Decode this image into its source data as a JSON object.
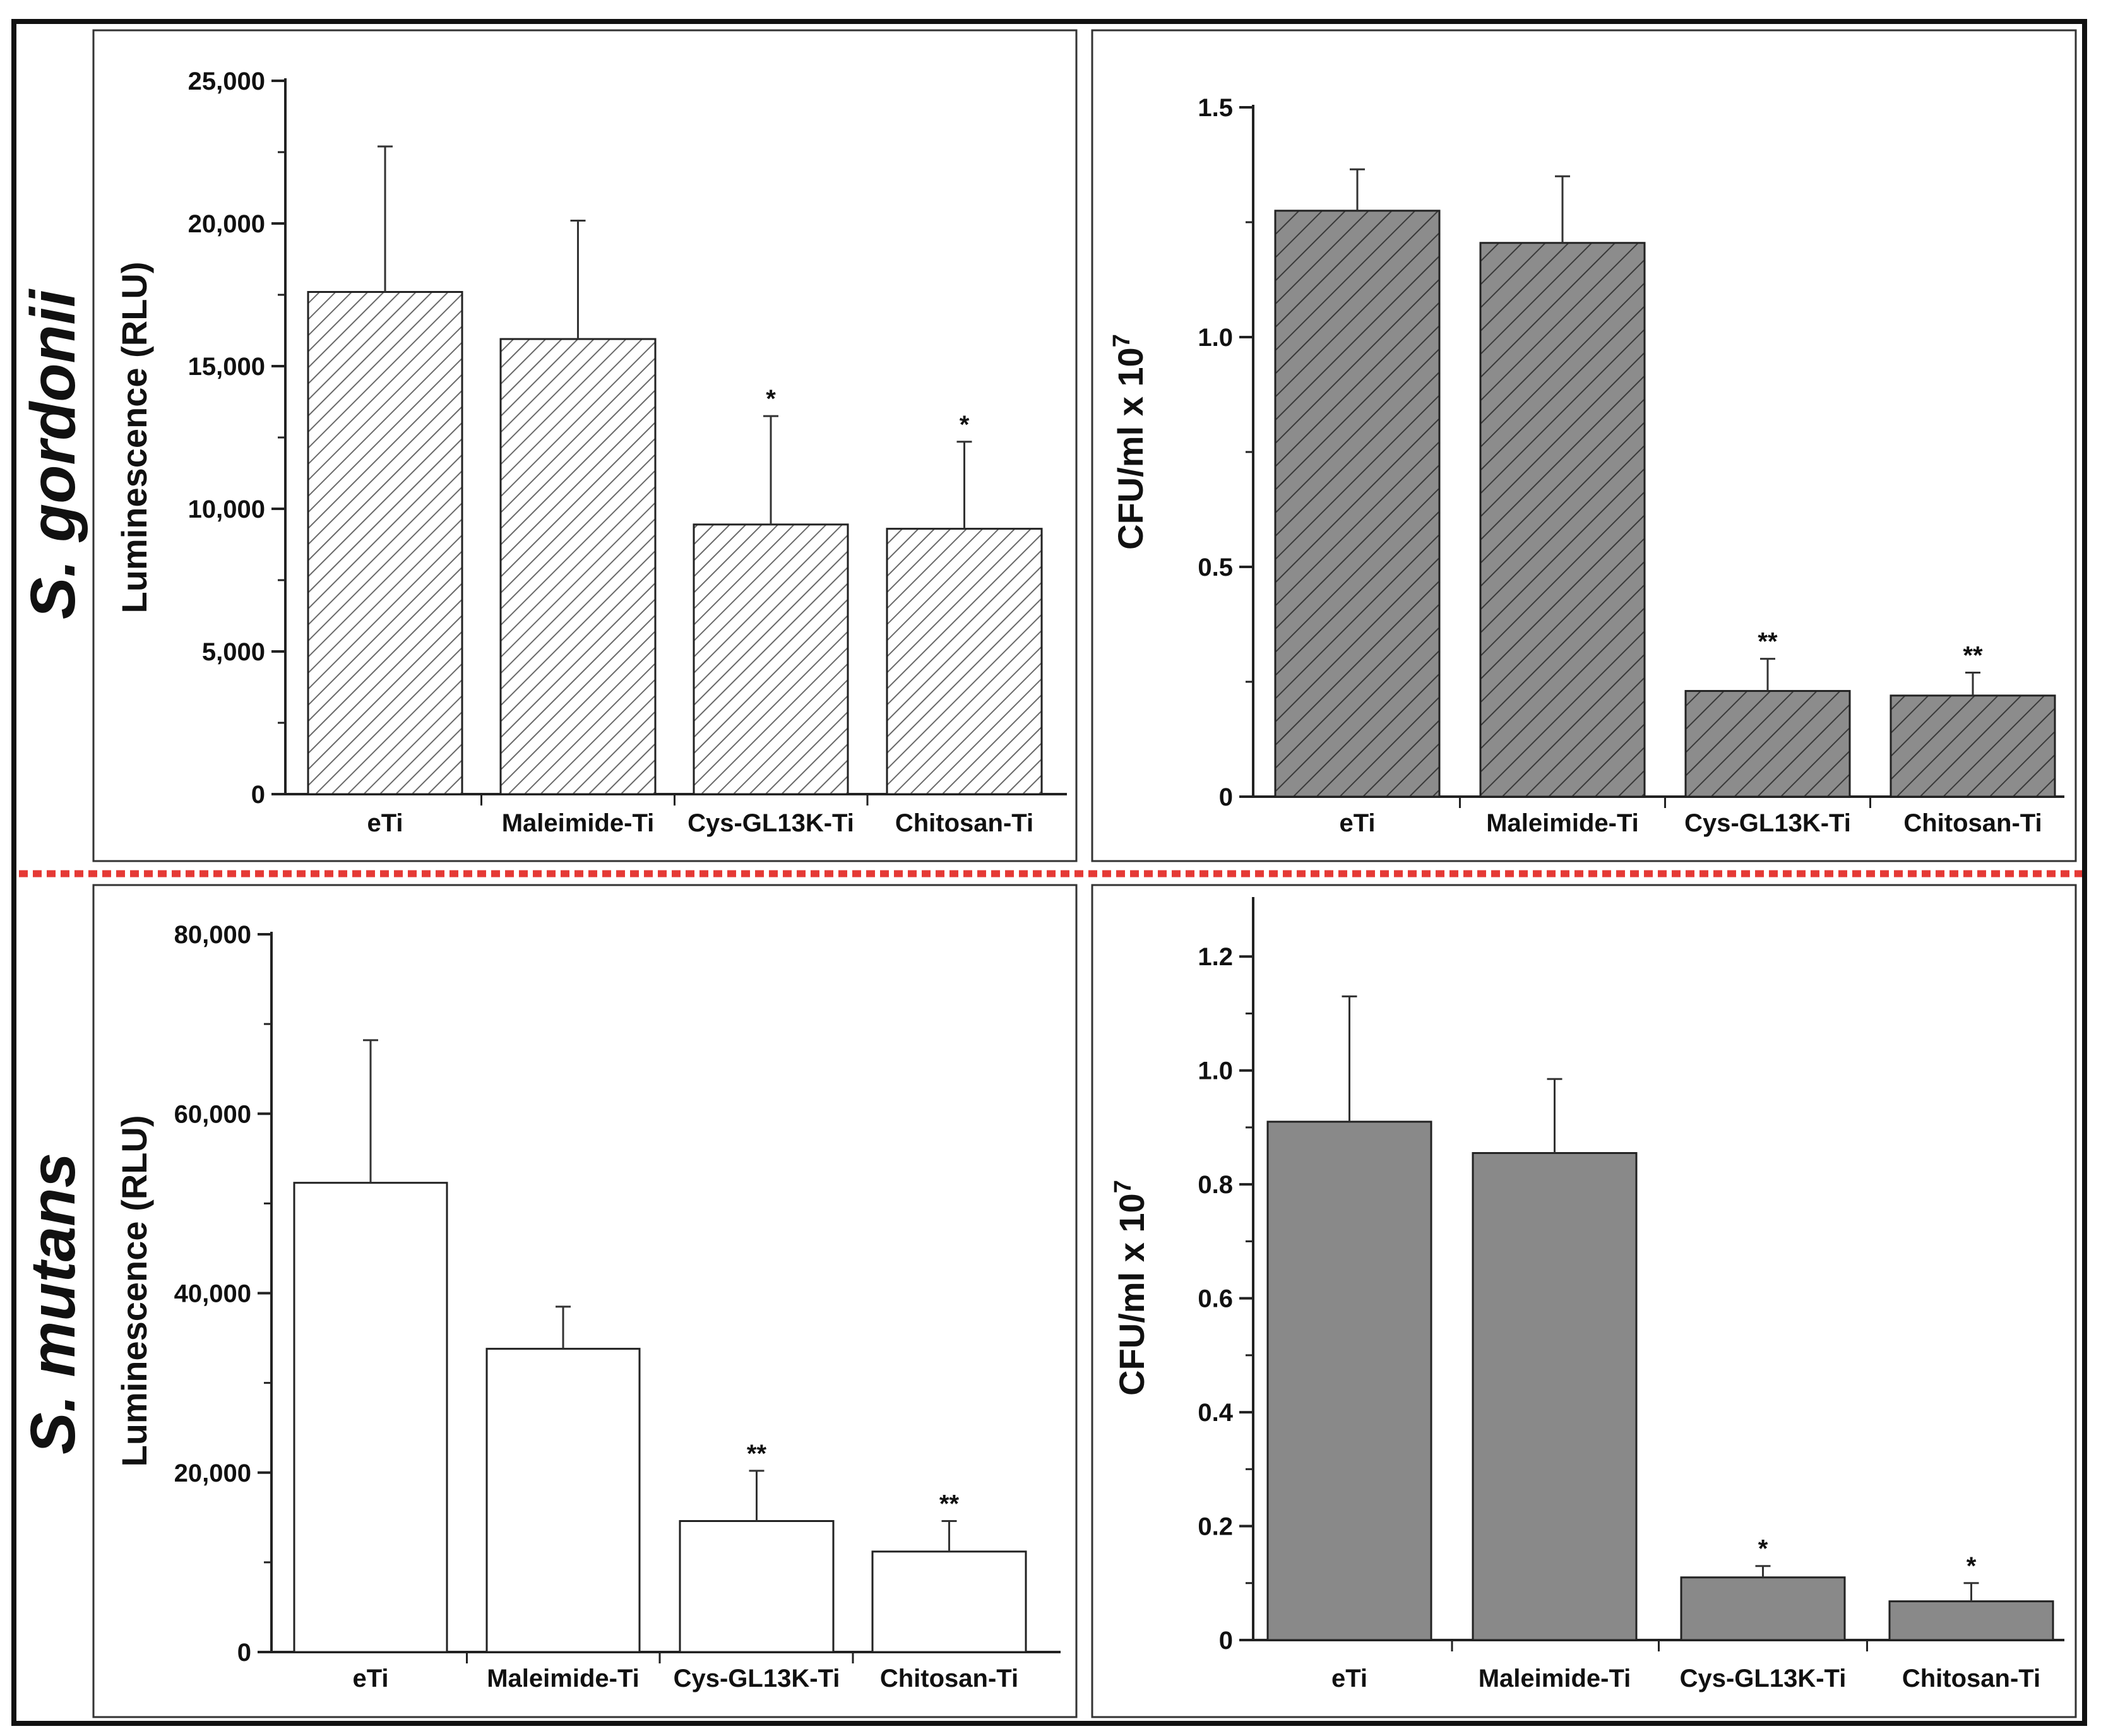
{
  "figure": {
    "species_top": "S. gordonii",
    "species_bottom": "S. mutans"
  },
  "chart_data": [
    {
      "id": "sg-lum",
      "type": "bar",
      "categories": [
        "eTi",
        "Maleimide-Ti",
        "Cys-GL13K-Ti",
        "Chitosan-Ti"
      ],
      "values": [
        17600,
        15950,
        9450,
        9300
      ],
      "errors": [
        5100,
        4150,
        3800,
        3050
      ],
      "significance": [
        "",
        "",
        "*",
        "*"
      ],
      "ylabel": "Luminescence (RLU)",
      "ylim": [
        0,
        25000
      ],
      "yticks": [
        0,
        5000,
        10000,
        15000,
        20000,
        25000
      ],
      "ytick_labels": [
        "0",
        "5,000",
        "10,000",
        "15,000",
        "20,000",
        "25,000"
      ],
      "fill": "light-hatch"
    },
    {
      "id": "sg-cfu",
      "type": "bar",
      "categories": [
        "eTi",
        "Maleimide-Ti",
        "Cys-GL13K-Ti",
        "Chitosan-Ti"
      ],
      "values": [
        1.275,
        1.205,
        0.23,
        0.22
      ],
      "errors": [
        0.09,
        0.145,
        0.07,
        0.05
      ],
      "significance": [
        "",
        "",
        "**",
        "**"
      ],
      "ylabel": "CFU/ml x 10",
      "ylabel_sup": "7",
      "ylim": [
        0,
        1.5
      ],
      "yticks": [
        0,
        0.5,
        1.0,
        1.5
      ],
      "ytick_labels": [
        "0",
        "0.5",
        "1.0",
        "1.5"
      ],
      "fill": "dark-hatch"
    },
    {
      "id": "sm-lum",
      "type": "bar",
      "categories": [
        "eTi",
        "Maleimide-Ti",
        "Cys-GL13K-Ti",
        "Chitosan-Ti"
      ],
      "values": [
        52300,
        33800,
        14600,
        11200
      ],
      "errors": [
        15900,
        4700,
        5600,
        3400
      ],
      "significance": [
        "",
        "",
        "**",
        "**"
      ],
      "ylabel": "Luminescence (RLU)",
      "ylim": [
        0,
        80000
      ],
      "yticks": [
        0,
        20000,
        40000,
        60000,
        80000
      ],
      "ytick_labels": [
        "0",
        "20,000",
        "40,000",
        "60,000",
        "80,000"
      ],
      "fill": "white"
    },
    {
      "id": "sm-cfu",
      "type": "bar",
      "categories": [
        "eTi",
        "Maleimide-Ti",
        "Cys-GL13K-Ti",
        "Chitosan-Ti"
      ],
      "values": [
        0.91,
        0.855,
        0.11,
        0.068
      ],
      "errors": [
        0.22,
        0.13,
        0.02,
        0.032
      ],
      "significance": [
        "",
        "",
        "*",
        "*"
      ],
      "ylabel": "CFU/ml x 10",
      "ylabel_sup": "7",
      "ylim": [
        0,
        1.3
      ],
      "yticks": [
        0,
        0.2,
        0.4,
        0.6,
        0.8,
        1.0,
        1.2
      ],
      "ytick_labels": [
        "0",
        "0.2",
        "0.4",
        "0.6",
        "0.8",
        "1.0",
        "1.2"
      ],
      "fill": "solid-gray"
    }
  ]
}
